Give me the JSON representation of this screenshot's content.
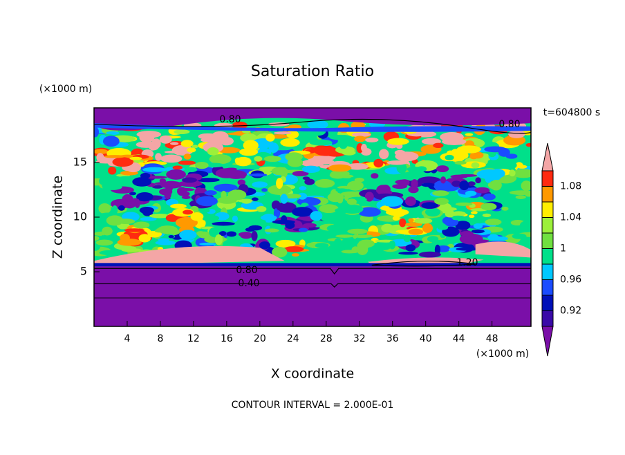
{
  "chart_data": {
    "type": "contour",
    "title": "Saturation Ratio",
    "xlabel": "X coordinate",
    "ylabel": "Z coordinate",
    "x_unit": "(×1000 m)",
    "y_unit": "(×1000 m)",
    "time_label": "t=604800 s",
    "footer": "CONTOUR INTERVAL = 2.000E-01",
    "xlim": [
      0,
      52.7
    ],
    "ylim": [
      0,
      20
    ],
    "xticks": [
      4,
      8,
      12,
      16,
      20,
      24,
      28,
      32,
      36,
      40,
      44,
      48
    ],
    "yticks": [
      5,
      10,
      15
    ],
    "contour_labels": [
      {
        "value": 0.8,
        "label": "0.80"
      },
      {
        "value": 0.8,
        "label": "0.80"
      },
      {
        "value": 0.8,
        "label": "0.80"
      },
      {
        "value": 0.4,
        "label": "0.40"
      },
      {
        "value": 1.2,
        "label": "1.20"
      }
    ],
    "colorbar": {
      "levels": [
        0.9,
        0.92,
        0.94,
        0.96,
        0.98,
        1,
        1.02,
        1.04,
        1.06,
        1.08,
        1.1
      ],
      "colors": [
        "#7a0fa8",
        "#3a0aa8",
        "#0010b8",
        "#1a4cff",
        "#00c8ff",
        "#00e08a",
        "#70e040",
        "#9cf03a",
        "#ffee00",
        "#ff9900",
        "#ff2a10",
        "#f4a6a6"
      ],
      "ticks": [
        0.92,
        0.96,
        1,
        1.04,
        1.08
      ]
    }
  }
}
